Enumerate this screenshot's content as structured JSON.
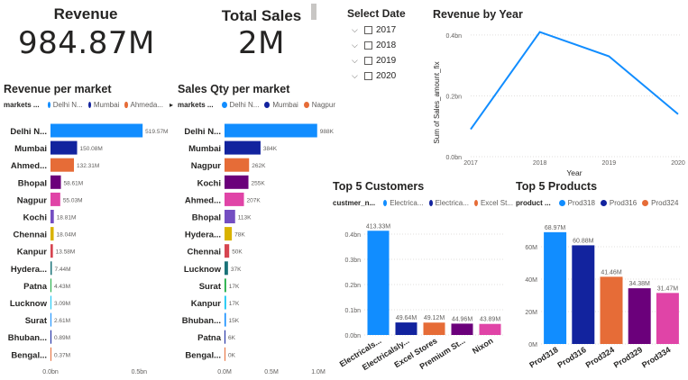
{
  "cards": {
    "revenue": {
      "title": "Revenue",
      "value": "984.87M"
    },
    "total_sales": {
      "title": "Total Sales",
      "value": "2M"
    }
  },
  "date_slicer": {
    "title": "Select Date",
    "items": [
      {
        "label": "2017"
      },
      {
        "label": "2018"
      },
      {
        "label": "2019"
      },
      {
        "label": "2020"
      }
    ]
  },
  "colors": {
    "c1": "#118DFF",
    "c2": "#12239E",
    "c3": "#E66C37",
    "c4": "#6B007B",
    "c5": "#E044A7",
    "c6": "#744EC2",
    "c7": "#D9B300",
    "c8": "#D64550",
    "c9": "#197278",
    "c10": "#1AAB40",
    "c11": "#15C6F4"
  },
  "revenue_per_market": {
    "title": "Revenue per market",
    "legend": {
      "title": "markets ...",
      "items": [
        {
          "label": "Delhi N...",
          "color": "#118DFF"
        },
        {
          "label": "Mumbai",
          "color": "#12239E"
        },
        {
          "label": "Ahmeda...",
          "color": "#E66C37"
        }
      ]
    }
  },
  "sales_qty_per_market": {
    "title": "Sales Qty per market",
    "legend": {
      "title": "markets ...",
      "items": [
        {
          "label": "Delhi N...",
          "color": "#118DFF"
        },
        {
          "label": "Mumbai",
          "color": "#12239E"
        },
        {
          "label": "Nagpur",
          "color": "#E66C37"
        }
      ]
    }
  },
  "top5_customers": {
    "title": "Top 5 Customers",
    "legend": {
      "title": "custmer_n...",
      "items": [
        {
          "label": "Electrica...",
          "color": "#118DFF"
        },
        {
          "label": "Electrica...",
          "color": "#12239E"
        },
        {
          "label": "Excel St...",
          "color": "#E66C37"
        }
      ]
    }
  },
  "top5_products": {
    "title": "Top 5 Products",
    "legend": {
      "title": "product ...",
      "items": [
        {
          "label": "Prod318",
          "color": "#118DFF"
        },
        {
          "label": "Prod316",
          "color": "#12239E"
        },
        {
          "label": "Prod324",
          "color": "#E66C37"
        }
      ]
    }
  },
  "revenue_by_year": {
    "title": "Revenue by Year"
  },
  "chart_data": [
    {
      "id": "revenue_per_market",
      "type": "bar",
      "orientation": "horizontal",
      "categories": [
        "Delhi N...",
        "Mumbai",
        "Ahmed...",
        "Bhopal",
        "Nagpur",
        "Kochi",
        "Chennai",
        "Kanpur",
        "Hydera...",
        "Patna",
        "Lucknow",
        "Surat",
        "Bhuban...",
        "Bengal..."
      ],
      "values": [
        519.57,
        150.08,
        132.31,
        58.61,
        55.03,
        18.81,
        18.04,
        13.58,
        7.44,
        4.43,
        3.09,
        2.61,
        0.89,
        0.37
      ],
      "labels": [
        "519.57M",
        "150.08M",
        "132.31M",
        "58.61M",
        "55.03M",
        "18.81M",
        "18.04M",
        "13.58M",
        "7.44M",
        "4.43M",
        "3.09M",
        "2.61M",
        "0.89M",
        "0.37M"
      ],
      "xticks": [
        "0.0bn",
        "0.5bn"
      ],
      "xlim": [
        0,
        600
      ],
      "unit": "M",
      "grid": false
    },
    {
      "id": "sales_qty_per_market",
      "type": "bar",
      "orientation": "horizontal",
      "categories": [
        "Delhi N...",
        "Mumbai",
        "Nagpur",
        "Kochi",
        "Ahmed...",
        "Bhopal",
        "Hydera...",
        "Chennai",
        "Lucknow",
        "Surat",
        "Kanpur",
        "Bhuban...",
        "Patna",
        "Bengal..."
      ],
      "values": [
        988,
        384,
        262,
        255,
        207,
        113,
        78,
        50,
        37,
        17,
        17,
        15,
        6,
        0
      ],
      "labels": [
        "988K",
        "384K",
        "262K",
        "255K",
        "207K",
        "113K",
        "78K",
        "50K",
        "37K",
        "17K",
        "17K",
        "15K",
        "6K",
        "0K"
      ],
      "xticks": [
        "0.0M",
        "0.5M",
        "1.0M"
      ],
      "xlim": [
        0,
        1000
      ],
      "unit": "K",
      "grid": false
    },
    {
      "id": "revenue_by_year",
      "type": "line",
      "x": [
        "2017",
        "2018",
        "2019",
        "2020"
      ],
      "values": [
        0.09,
        0.41,
        0.33,
        0.14
      ],
      "ylabel": "Sum of Sales_amount_fix",
      "xlabel": "Year",
      "yticks": [
        "0.0bn",
        "0.2bn",
        "0.4bn"
      ],
      "ylim": [
        0,
        0.45
      ],
      "grid": true
    },
    {
      "id": "top5_customers",
      "type": "bar",
      "orientation": "vertical",
      "categories": [
        "Electricals...",
        "Electricalsly...",
        "Excel Stores",
        "Premium St...",
        "Nixon"
      ],
      "values": [
        413.33,
        49.64,
        49.12,
        44.96,
        43.89
      ],
      "labels": [
        "413.33M",
        "49.64M",
        "49.12M",
        "44.96M",
        "43.89M"
      ],
      "yticks": [
        "0.0bn",
        "0.1bn",
        "0.2bn",
        "0.3bn",
        "0.4bn"
      ],
      "ylim": [
        0,
        450
      ],
      "grid": true
    },
    {
      "id": "top5_products",
      "type": "bar",
      "orientation": "vertical",
      "categories": [
        "Prod318",
        "Prod316",
        "Prod324",
        "Prod329",
        "Prod334"
      ],
      "values": [
        68.97,
        60.88,
        41.46,
        34.38,
        31.47
      ],
      "labels": [
        "68.97M",
        "60.88M",
        "41.46M",
        "34.38M",
        "31.47M"
      ],
      "yticks": [
        "0M",
        "20M",
        "40M",
        "60M"
      ],
      "ylim": [
        0,
        75
      ],
      "grid": true
    }
  ]
}
